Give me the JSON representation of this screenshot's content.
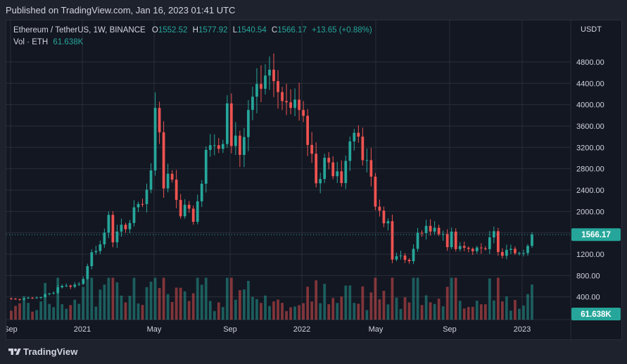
{
  "header": {
    "published": "Published on TradingView.com, Jan 16, 2023 01:41 UTC"
  },
  "legend": {
    "symbol": "Ethereum / TetherUS, 1W, BINANCE",
    "o_label": "O",
    "o_value": "1552.52",
    "h_label": "H",
    "h_value": "1577.92",
    "l_label": "L",
    "l_value": "1540.54",
    "c_label": "C",
    "c_value": "1566.17",
    "change": "+13.65 (+0.88%)",
    "vol_label": "Vol · ETH",
    "vol_value": "61.638K"
  },
  "footer": {
    "brand": "TradingView"
  },
  "colors": {
    "up": "#26a69a",
    "down": "#ef5350",
    "up_volume": "#26a69a",
    "down_volume": "#ef5350",
    "background": "#131722",
    "grid": "#2a2e39"
  },
  "chart_data": {
    "type": "candlestick",
    "title": "Ethereum / TetherUS, 1W, BINANCE",
    "xlabel": "",
    "ylabel": "USDT",
    "y_unit": "USDT",
    "yticks": [
      400,
      800,
      1200,
      1600,
      2000,
      2400,
      2800,
      3200,
      3600,
      4000,
      4400,
      4800
    ],
    "ylim": [
      0,
      5050
    ],
    "xticks": [
      "Sep",
      "2021",
      "May",
      "Sep",
      "2022",
      "May",
      "Sep",
      "2023"
    ],
    "grid": true,
    "last_price_label": "1566.17",
    "last_volume_label": "61.638K",
    "close_prices": [
      366,
      359,
      348,
      370,
      384,
      383,
      387,
      396,
      449,
      462,
      475,
      579,
      606,
      612,
      589,
      630,
      642,
      736,
      975,
      1236,
      1259,
      1384,
      1604,
      1935,
      1422,
      1624,
      1751,
      1667,
      1784,
      2077,
      2139,
      2137,
      2408,
      2768,
      3939,
      3482,
      2431,
      2706,
      2596,
      2216,
      1909,
      2125,
      2052,
      1806,
      2190,
      2519,
      3153,
      3240,
      3240,
      3172,
      3262,
      4024,
      3225,
      3420,
      3059,
      3393,
      3901,
      4149,
      4388,
      4296,
      4545,
      4655,
      4440,
      4235,
      4068,
      4044,
      3938,
      4094,
      3900,
      3791,
      3246,
      3081,
      2527,
      2608,
      3005,
      2918,
      2660,
      2751,
      2531,
      2947,
      3312,
      3473,
      3401,
      2960,
      2961,
      2652,
      2090,
      2016,
      1777,
      1817,
      1099,
      1163,
      1174,
      1094,
      1068,
      1300,
      1600,
      1594,
      1730,
      1623,
      1694,
      1575,
      1577,
      1331,
      1622,
      1294,
      1353,
      1320,
      1300,
      1256,
      1324,
      1310,
      1294,
      1515,
      1630,
      1240,
      1170,
      1280,
      1300,
      1217,
      1220,
      1220,
      1355,
      1566
    ],
    "volume_note": "weekly volume bars in ETH, last value 61.638K"
  }
}
